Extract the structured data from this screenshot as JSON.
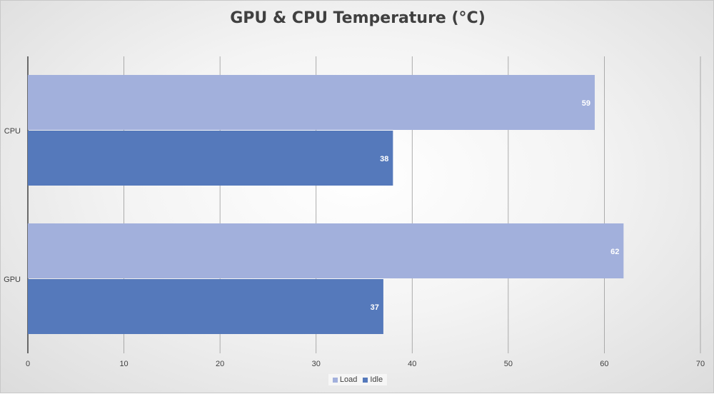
{
  "chart_data": {
    "type": "bar",
    "orientation": "horizontal",
    "title": "GPU & CPU Temperature (°C)",
    "xlabel": "",
    "ylabel": "",
    "categories": [
      "CPU",
      "GPU"
    ],
    "series": [
      {
        "name": "Load",
        "values": [
          59,
          62
        ],
        "color": "#a2b0dc"
      },
      {
        "name": "Idle",
        "values": [
          38,
          37
        ],
        "color": "#5579bb"
      }
    ],
    "xlim": [
      0,
      70
    ],
    "xticks": [
      0,
      10,
      20,
      30,
      40,
      50,
      60,
      70
    ],
    "grid": true,
    "data_labels": true,
    "legend_position": "bottom"
  }
}
